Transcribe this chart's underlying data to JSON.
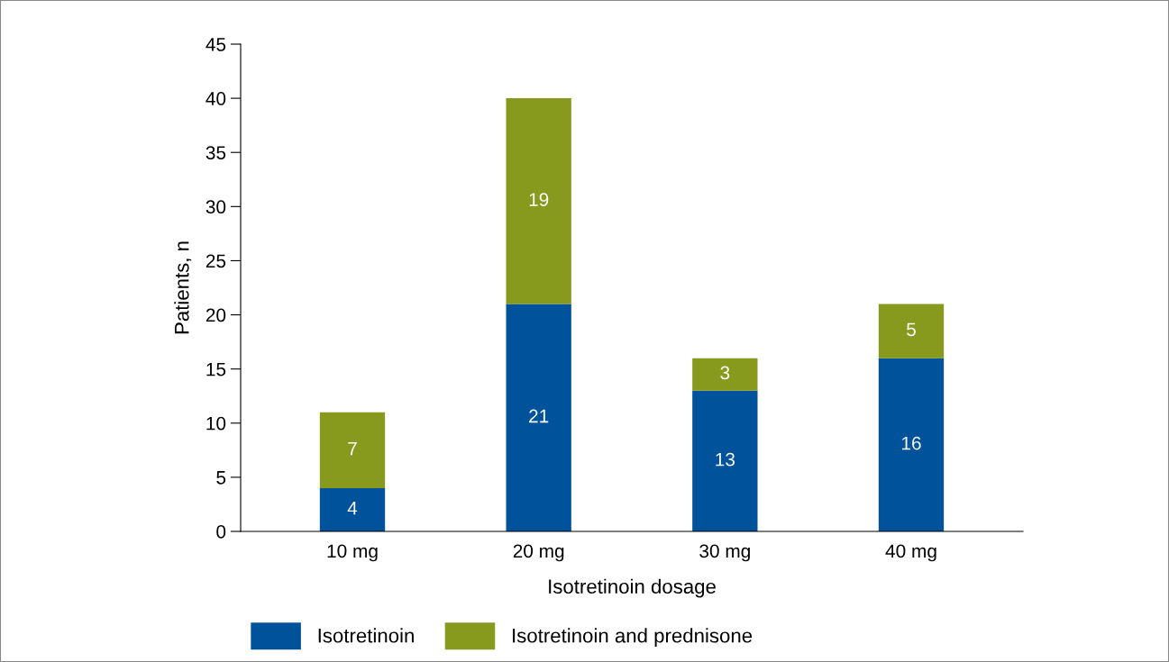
{
  "chart_data": {
    "type": "bar",
    "stacked": true,
    "xlabel": "Isotretinoin dosage",
    "ylabel": "Patients, n",
    "categories": [
      "10 mg",
      "20 mg",
      "30 mg",
      "40 mg"
    ],
    "series": [
      {
        "name": "Isotretinoin",
        "color": "#00529b",
        "values": [
          4,
          21,
          13,
          16
        ]
      },
      {
        "name": "Isotretinoin and prednisone",
        "color": "#879a1e",
        "values": [
          7,
          19,
          3,
          5
        ]
      }
    ],
    "ylim": [
      0,
      45
    ],
    "yticks": [
      0,
      5,
      10,
      15,
      20,
      25,
      30,
      35,
      40,
      45
    ],
    "data_labels": true,
    "grid": false,
    "legend": "bottom"
  }
}
